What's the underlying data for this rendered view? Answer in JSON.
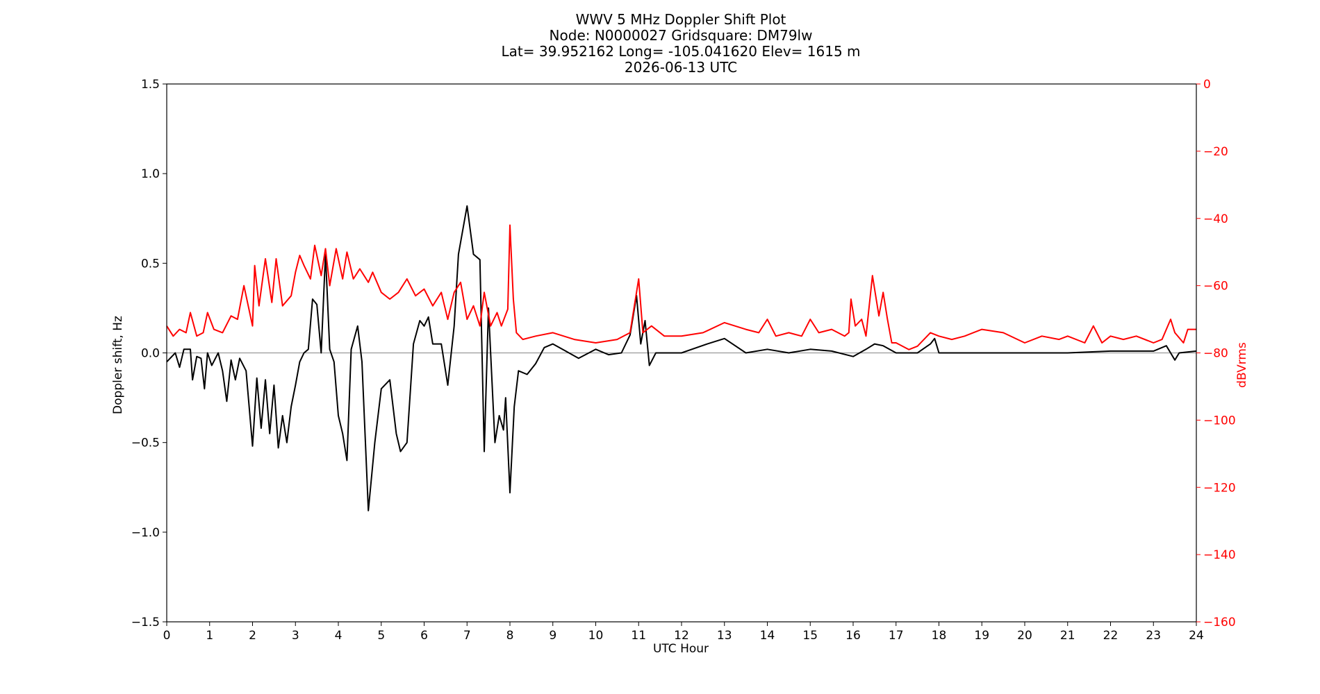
{
  "chart_data": {
    "type": "line",
    "title_lines": [
      "WWV 5 MHz Doppler Shift Plot",
      "Node:  N0000027     Gridsquare:  DM79lw",
      "Lat= 39.952162    Long= -105.041620    Elev= 1615 m",
      "2026-06-13  UTC"
    ],
    "xlabel": "UTC Hour",
    "ylabel_left": "Doppler shift, Hz",
    "ylabel_right": "dBVrms",
    "xlim": [
      0,
      24
    ],
    "ylim_left": [
      -1.5,
      1.5
    ],
    "ylim_right": [
      -160,
      0
    ],
    "x_ticks": [
      "0",
      "1",
      "2",
      "3",
      "4",
      "5",
      "6",
      "7",
      "8",
      "9",
      "10",
      "11",
      "12",
      "13",
      "14",
      "15",
      "16",
      "17",
      "18",
      "19",
      "20",
      "21",
      "22",
      "23",
      "24"
    ],
    "y_ticks_left": [
      "−1.5",
      "−1.0",
      "−0.5",
      "0.0",
      "0.5",
      "1.0",
      "1.5"
    ],
    "y_ticks_left_values": [
      -1.5,
      -1.0,
      -0.5,
      0.0,
      0.5,
      1.0,
      1.5
    ],
    "y_ticks_right": [
      "−160",
      "−140",
      "−120",
      "−100",
      "−80",
      "−60",
      "−40",
      "−20",
      "0"
    ],
    "y_ticks_right_values": [
      -160,
      -140,
      -120,
      -100,
      -80,
      -60,
      -40,
      -20,
      0
    ],
    "zero_line": 0,
    "colors": {
      "doppler": "#000000",
      "power": "#ff0000",
      "zero_line": "#999999",
      "right_axis": "#ff0000"
    },
    "series": [
      {
        "axis": "left",
        "color": "#000000",
        "points": [
          [
            0.0,
            -0.05
          ],
          [
            0.2,
            0.0
          ],
          [
            0.3,
            -0.08
          ],
          [
            0.4,
            0.02
          ],
          [
            0.55,
            0.02
          ],
          [
            0.6,
            -0.15
          ],
          [
            0.7,
            -0.02
          ],
          [
            0.8,
            -0.03
          ],
          [
            0.88,
            -0.2
          ],
          [
            0.95,
            0.0
          ],
          [
            1.05,
            -0.07
          ],
          [
            1.2,
            0.0
          ],
          [
            1.3,
            -0.1
          ],
          [
            1.4,
            -0.27
          ],
          [
            1.5,
            -0.04
          ],
          [
            1.6,
            -0.15
          ],
          [
            1.7,
            -0.03
          ],
          [
            1.85,
            -0.1
          ],
          [
            2.0,
            -0.52
          ],
          [
            2.1,
            -0.14
          ],
          [
            2.2,
            -0.42
          ],
          [
            2.3,
            -0.15
          ],
          [
            2.4,
            -0.45
          ],
          [
            2.5,
            -0.18
          ],
          [
            2.6,
            -0.53
          ],
          [
            2.7,
            -0.35
          ],
          [
            2.8,
            -0.5
          ],
          [
            2.9,
            -0.3
          ],
          [
            3.0,
            -0.18
          ],
          [
            3.1,
            -0.05
          ],
          [
            3.2,
            0.0
          ],
          [
            3.3,
            0.02
          ],
          [
            3.4,
            0.3
          ],
          [
            3.5,
            0.27
          ],
          [
            3.6,
            0.0
          ],
          [
            3.7,
            0.55
          ],
          [
            3.8,
            0.02
          ],
          [
            3.9,
            -0.05
          ],
          [
            4.0,
            -0.35
          ],
          [
            4.1,
            -0.45
          ],
          [
            4.2,
            -0.6
          ],
          [
            4.3,
            0.02
          ],
          [
            4.45,
            0.15
          ],
          [
            4.55,
            -0.05
          ],
          [
            4.7,
            -0.88
          ],
          [
            4.85,
            -0.5
          ],
          [
            5.0,
            -0.2
          ],
          [
            5.2,
            -0.15
          ],
          [
            5.35,
            -0.45
          ],
          [
            5.45,
            -0.55
          ],
          [
            5.6,
            -0.5
          ],
          [
            5.75,
            0.05
          ],
          [
            5.9,
            0.18
          ],
          [
            6.0,
            0.15
          ],
          [
            6.1,
            0.2
          ],
          [
            6.2,
            0.05
          ],
          [
            6.4,
            0.05
          ],
          [
            6.55,
            -0.18
          ],
          [
            6.7,
            0.15
          ],
          [
            6.8,
            0.55
          ],
          [
            7.0,
            0.82
          ],
          [
            7.15,
            0.55
          ],
          [
            7.3,
            0.52
          ],
          [
            7.4,
            -0.55
          ],
          [
            7.5,
            0.25
          ],
          [
            7.65,
            -0.5
          ],
          [
            7.75,
            -0.35
          ],
          [
            7.85,
            -0.43
          ],
          [
            7.9,
            -0.25
          ],
          [
            8.0,
            -0.78
          ],
          [
            8.1,
            -0.3
          ],
          [
            8.2,
            -0.1
          ],
          [
            8.4,
            -0.12
          ],
          [
            8.6,
            -0.06
          ],
          [
            8.8,
            0.03
          ],
          [
            9.0,
            0.05
          ],
          [
            9.3,
            0.01
          ],
          [
            9.6,
            -0.03
          ],
          [
            10.0,
            0.02
          ],
          [
            10.3,
            -0.01
          ],
          [
            10.6,
            0.0
          ],
          [
            10.8,
            0.1
          ],
          [
            10.95,
            0.32
          ],
          [
            11.05,
            0.05
          ],
          [
            11.15,
            0.18
          ],
          [
            11.25,
            -0.07
          ],
          [
            11.4,
            0.0
          ],
          [
            12.0,
            0.0
          ],
          [
            12.6,
            0.05
          ],
          [
            13.0,
            0.08
          ],
          [
            13.5,
            0.0
          ],
          [
            14.0,
            0.02
          ],
          [
            14.5,
            0.0
          ],
          [
            15.0,
            0.02
          ],
          [
            15.5,
            0.01
          ],
          [
            16.0,
            -0.02
          ],
          [
            16.3,
            0.02
          ],
          [
            16.5,
            0.05
          ],
          [
            16.7,
            0.04
          ],
          [
            17.0,
            0.0
          ],
          [
            17.5,
            0.0
          ],
          [
            17.8,
            0.05
          ],
          [
            17.9,
            0.08
          ],
          [
            18.0,
            0.0
          ],
          [
            19.0,
            0.0
          ],
          [
            20.0,
            0.0
          ],
          [
            21.0,
            0.0
          ],
          [
            22.0,
            0.01
          ],
          [
            23.0,
            0.01
          ],
          [
            23.3,
            0.04
          ],
          [
            23.5,
            -0.04
          ],
          [
            23.6,
            0.0
          ],
          [
            24.0,
            0.01
          ]
        ]
      },
      {
        "axis": "right",
        "color": "#ff0000",
        "points": [
          [
            0.0,
            -72
          ],
          [
            0.15,
            -75
          ],
          [
            0.3,
            -73
          ],
          [
            0.45,
            -74
          ],
          [
            0.55,
            -68
          ],
          [
            0.7,
            -75
          ],
          [
            0.85,
            -74
          ],
          [
            0.95,
            -68
          ],
          [
            1.1,
            -73
          ],
          [
            1.3,
            -74
          ],
          [
            1.5,
            -69
          ],
          [
            1.65,
            -70
          ],
          [
            1.8,
            -60
          ],
          [
            2.0,
            -72
          ],
          [
            2.05,
            -54
          ],
          [
            2.15,
            -66
          ],
          [
            2.3,
            -52
          ],
          [
            2.45,
            -65
          ],
          [
            2.55,
            -52
          ],
          [
            2.7,
            -66
          ],
          [
            2.9,
            -63
          ],
          [
            3.0,
            -56
          ],
          [
            3.1,
            -51
          ],
          [
            3.2,
            -54
          ],
          [
            3.35,
            -58
          ],
          [
            3.45,
            -48
          ],
          [
            3.6,
            -57
          ],
          [
            3.7,
            -49
          ],
          [
            3.8,
            -60
          ],
          [
            3.95,
            -49
          ],
          [
            4.1,
            -58
          ],
          [
            4.2,
            -50
          ],
          [
            4.35,
            -58
          ],
          [
            4.5,
            -55
          ],
          [
            4.7,
            -59
          ],
          [
            4.8,
            -56
          ],
          [
            5.0,
            -62
          ],
          [
            5.2,
            -64
          ],
          [
            5.4,
            -62
          ],
          [
            5.6,
            -58
          ],
          [
            5.8,
            -63
          ],
          [
            6.0,
            -61
          ],
          [
            6.2,
            -66
          ],
          [
            6.4,
            -62
          ],
          [
            6.55,
            -70
          ],
          [
            6.7,
            -62
          ],
          [
            6.85,
            -59
          ],
          [
            7.0,
            -70
          ],
          [
            7.15,
            -66
          ],
          [
            7.3,
            -72
          ],
          [
            7.4,
            -62
          ],
          [
            7.55,
            -72
          ],
          [
            7.7,
            -68
          ],
          [
            7.8,
            -72
          ],
          [
            7.95,
            -67
          ],
          [
            8.0,
            -42
          ],
          [
            8.08,
            -64
          ],
          [
            8.15,
            -74
          ],
          [
            8.3,
            -76
          ],
          [
            8.6,
            -75
          ],
          [
            9.0,
            -74
          ],
          [
            9.5,
            -76
          ],
          [
            10.0,
            -77
          ],
          [
            10.5,
            -76
          ],
          [
            10.8,
            -74
          ],
          [
            11.0,
            -58
          ],
          [
            11.1,
            -74
          ],
          [
            11.3,
            -72
          ],
          [
            11.6,
            -75
          ],
          [
            12.0,
            -75
          ],
          [
            12.5,
            -74
          ],
          [
            13.0,
            -71
          ],
          [
            13.5,
            -73
          ],
          [
            13.8,
            -74
          ],
          [
            14.0,
            -70
          ],
          [
            14.2,
            -75
          ],
          [
            14.5,
            -74
          ],
          [
            14.8,
            -75
          ],
          [
            15.0,
            -70
          ],
          [
            15.2,
            -74
          ],
          [
            15.5,
            -73
          ],
          [
            15.8,
            -75
          ],
          [
            15.9,
            -74
          ],
          [
            15.95,
            -64
          ],
          [
            16.05,
            -72
          ],
          [
            16.2,
            -70
          ],
          [
            16.3,
            -75
          ],
          [
            16.45,
            -57
          ],
          [
            16.6,
            -69
          ],
          [
            16.7,
            -62
          ],
          [
            16.8,
            -70
          ],
          [
            16.9,
            -77
          ],
          [
            17.0,
            -77
          ],
          [
            17.3,
            -79
          ],
          [
            17.5,
            -78
          ],
          [
            17.8,
            -74
          ],
          [
            18.0,
            -75
          ],
          [
            18.3,
            -76
          ],
          [
            18.6,
            -75
          ],
          [
            19.0,
            -73
          ],
          [
            19.5,
            -74
          ],
          [
            20.0,
            -77
          ],
          [
            20.4,
            -75
          ],
          [
            20.8,
            -76
          ],
          [
            21.0,
            -75
          ],
          [
            21.4,
            -77
          ],
          [
            21.6,
            -72
          ],
          [
            21.8,
            -77
          ],
          [
            22.0,
            -75
          ],
          [
            22.3,
            -76
          ],
          [
            22.6,
            -75
          ],
          [
            23.0,
            -77
          ],
          [
            23.2,
            -76
          ],
          [
            23.4,
            -70
          ],
          [
            23.5,
            -74
          ],
          [
            23.7,
            -77
          ],
          [
            23.8,
            -73
          ],
          [
            24.0,
            -73
          ]
        ]
      }
    ]
  }
}
